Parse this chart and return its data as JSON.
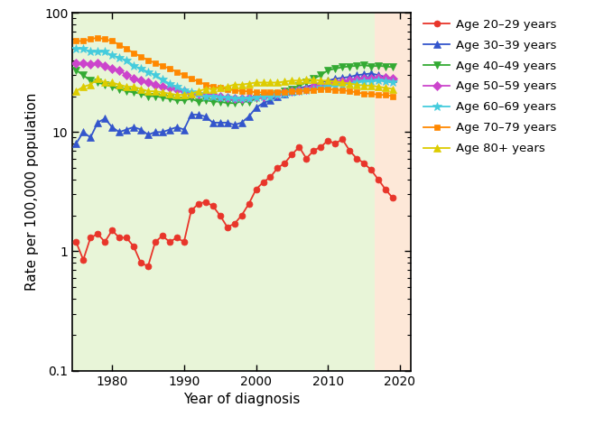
{
  "xlabel": "Year of diagnosis",
  "ylabel": "Rate per 100,000 population",
  "ylim": [
    0.1,
    100
  ],
  "xlim": [
    1974.5,
    2021.5
  ],
  "green_bg_start": 1974.5,
  "green_bg_end": 2016.5,
  "pink_bg_start": 2016.5,
  "pink_bg_end": 2021.5,
  "xticks": [
    1980,
    1990,
    2000,
    2010,
    2020
  ],
  "yticks": [
    0.1,
    1,
    10,
    100
  ],
  "ytick_labels": [
    "0.1",
    "1",
    "10",
    "100"
  ],
  "series": [
    {
      "label": "Age 20–29 years",
      "color": "#e8352a",
      "marker": "o",
      "markersize": 5,
      "linewidth": 1.3,
      "years": [
        1975,
        1976,
        1977,
        1978,
        1979,
        1980,
        1981,
        1982,
        1983,
        1984,
        1985,
        1986,
        1987,
        1988,
        1989,
        1990,
        1991,
        1992,
        1993,
        1994,
        1995,
        1996,
        1997,
        1998,
        1999,
        2000,
        2001,
        2002,
        2003,
        2004,
        2005,
        2006,
        2007,
        2008,
        2009,
        2010,
        2011,
        2012,
        2013,
        2014,
        2015,
        2016,
        2017,
        2018,
        2019
      ],
      "values": [
        1.2,
        0.85,
        1.3,
        1.4,
        1.2,
        1.5,
        1.3,
        1.3,
        1.1,
        0.8,
        0.75,
        1.2,
        1.35,
        1.2,
        1.3,
        1.2,
        2.2,
        2.5,
        2.6,
        2.4,
        2.0,
        1.6,
        1.7,
        2.0,
        2.5,
        3.3,
        3.8,
        4.2,
        5.0,
        5.5,
        6.5,
        7.5,
        6.0,
        7.0,
        7.5,
        8.5,
        8.0,
        8.7,
        7.0,
        6.0,
        5.5,
        4.8,
        4.0,
        3.3,
        2.8
      ]
    },
    {
      "label": "Age 30–39 years",
      "color": "#3355cc",
      "marker": "^",
      "markersize": 6,
      "linewidth": 1.3,
      "years": [
        1975,
        1976,
        1977,
        1978,
        1979,
        1980,
        1981,
        1982,
        1983,
        1984,
        1985,
        1986,
        1987,
        1988,
        1989,
        1990,
        1991,
        1992,
        1993,
        1994,
        1995,
        1996,
        1997,
        1998,
        1999,
        2000,
        2001,
        2002,
        2003,
        2004,
        2005,
        2006,
        2007,
        2008,
        2009,
        2010,
        2011,
        2012,
        2013,
        2014,
        2015,
        2016,
        2017,
        2018,
        2019
      ],
      "values": [
        8.0,
        10.0,
        9.0,
        12.0,
        13.0,
        11.0,
        10.0,
        10.5,
        11.0,
        10.5,
        9.5,
        10.0,
        10.0,
        10.5,
        11.0,
        10.5,
        14.0,
        14.0,
        13.5,
        12.0,
        12.0,
        12.0,
        11.5,
        12.0,
        13.5,
        16.0,
        17.5,
        18.5,
        20.0,
        21.0,
        22.0,
        23.5,
        24.0,
        25.0,
        26.0,
        27.0,
        28.0,
        28.5,
        29.0,
        30.0,
        30.5,
        31.0,
        30.0,
        29.0,
        28.0
      ]
    },
    {
      "label": "Age 40–49 years",
      "color": "#33aa33",
      "marker": "v",
      "markersize": 6,
      "linewidth": 1.3,
      "years": [
        1975,
        1976,
        1977,
        1978,
        1979,
        1980,
        1981,
        1982,
        1983,
        1984,
        1985,
        1986,
        1987,
        1988,
        1989,
        1990,
        1991,
        1992,
        1993,
        1994,
        1995,
        1996,
        1997,
        1998,
        1999,
        2000,
        2001,
        2002,
        2003,
        2004,
        2005,
        2006,
        2007,
        2008,
        2009,
        2010,
        2011,
        2012,
        2013,
        2014,
        2015,
        2016,
        2017,
        2018,
        2019
      ],
      "values": [
        33.0,
        30.0,
        27.0,
        26.0,
        25.0,
        24.0,
        23.0,
        22.0,
        21.5,
        21.0,
        20.0,
        20.0,
        19.5,
        19.0,
        18.5,
        18.5,
        19.0,
        18.0,
        18.5,
        18.0,
        18.0,
        17.5,
        17.5,
        18.0,
        18.0,
        19.0,
        19.5,
        20.0,
        21.0,
        22.0,
        23.0,
        24.5,
        26.0,
        28.0,
        30.0,
        33.0,
        34.0,
        35.0,
        35.5,
        36.0,
        36.5,
        35.5,
        36.0,
        35.5,
        35.0
      ]
    },
    {
      "label": "Age 50–59 years",
      "color": "#cc44cc",
      "marker": "D",
      "markersize": 5,
      "linewidth": 1.3,
      "years": [
        1975,
        1976,
        1977,
        1978,
        1979,
        1980,
        1981,
        1982,
        1983,
        1984,
        1985,
        1986,
        1987,
        1988,
        1989,
        1990,
        1991,
        1992,
        1993,
        1994,
        1995,
        1996,
        1997,
        1998,
        1999,
        2000,
        2001,
        2002,
        2003,
        2004,
        2005,
        2006,
        2007,
        2008,
        2009,
        2010,
        2011,
        2012,
        2013,
        2014,
        2015,
        2016,
        2017,
        2018,
        2019
      ],
      "values": [
        38.0,
        38.0,
        37.0,
        38.0,
        36.0,
        34.0,
        33.0,
        30.0,
        28.0,
        27.0,
        26.0,
        25.0,
        24.0,
        23.5,
        23.0,
        22.0,
        21.0,
        21.0,
        20.5,
        20.5,
        20.0,
        19.5,
        19.0,
        19.0,
        19.5,
        20.0,
        20.0,
        20.5,
        21.0,
        21.5,
        22.0,
        22.5,
        23.0,
        24.0,
        25.0,
        25.5,
        26.0,
        26.5,
        27.0,
        27.5,
        28.0,
        28.0,
        28.5,
        28.5,
        28.0
      ]
    },
    {
      "label": "Age 60–69 years",
      "color": "#44ccdd",
      "marker": "*",
      "markersize": 7,
      "linewidth": 1.3,
      "years": [
        1975,
        1976,
        1977,
        1978,
        1979,
        1980,
        1981,
        1982,
        1983,
        1984,
        1985,
        1986,
        1987,
        1988,
        1989,
        1990,
        1991,
        1992,
        1993,
        1994,
        1995,
        1996,
        1997,
        1998,
        1999,
        2000,
        2001,
        2002,
        2003,
        2004,
        2005,
        2006,
        2007,
        2008,
        2009,
        2010,
        2011,
        2012,
        2013,
        2014,
        2015,
        2016,
        2017,
        2018,
        2019
      ],
      "values": [
        50.0,
        50.0,
        47.0,
        47.0,
        47.0,
        44.0,
        42.0,
        40.0,
        36.0,
        34.0,
        32.0,
        30.0,
        27.5,
        25.5,
        24.0,
        22.5,
        21.5,
        21.0,
        20.0,
        20.0,
        19.5,
        19.5,
        19.0,
        19.0,
        19.0,
        19.5,
        20.0,
        20.0,
        20.5,
        21.0,
        21.5,
        22.0,
        22.5,
        23.0,
        23.5,
        24.0,
        24.5,
        25.0,
        25.5,
        26.0,
        26.5,
        26.5,
        27.0,
        26.5,
        26.0
      ]
    },
    {
      "label": "Age 70–79 years",
      "color": "#ff8800",
      "marker": "s",
      "markersize": 5,
      "linewidth": 1.3,
      "years": [
        1975,
        1976,
        1977,
        1978,
        1979,
        1980,
        1981,
        1982,
        1983,
        1984,
        1985,
        1986,
        1987,
        1988,
        1989,
        1990,
        1991,
        1992,
        1993,
        1994,
        1995,
        1996,
        1997,
        1998,
        1999,
        2000,
        2001,
        2002,
        2003,
        2004,
        2005,
        2006,
        2007,
        2008,
        2009,
        2010,
        2011,
        2012,
        2013,
        2014,
        2015,
        2016,
        2017,
        2018,
        2019
      ],
      "values": [
        58.0,
        58.0,
        60.0,
        62.0,
        60.0,
        58.0,
        54.0,
        50.0,
        46.0,
        43.0,
        40.0,
        38.0,
        36.0,
        34.0,
        32.0,
        30.0,
        28.0,
        26.5,
        25.0,
        24.0,
        23.5,
        23.0,
        22.5,
        22.0,
        22.0,
        21.5,
        21.5,
        21.5,
        21.5,
        21.5,
        22.0,
        22.0,
        22.5,
        22.5,
        23.0,
        23.0,
        22.5,
        22.5,
        22.0,
        21.5,
        21.0,
        21.0,
        20.5,
        20.5,
        20.0
      ]
    },
    {
      "label": "Age 80+ years",
      "color": "#ddcc00",
      "marker": "^",
      "markersize": 6,
      "linewidth": 1.3,
      "years": [
        1975,
        1976,
        1977,
        1978,
        1979,
        1980,
        1981,
        1982,
        1983,
        1984,
        1985,
        1986,
        1987,
        1988,
        1989,
        1990,
        1991,
        1992,
        1993,
        1994,
        1995,
        1996,
        1997,
        1998,
        1999,
        2000,
        2001,
        2002,
        2003,
        2004,
        2005,
        2006,
        2007,
        2008,
        2009,
        2010,
        2011,
        2012,
        2013,
        2014,
        2015,
        2016,
        2017,
        2018,
        2019
      ],
      "values": [
        22.0,
        24.0,
        25.0,
        28.0,
        26.0,
        26.0,
        25.0,
        24.0,
        24.0,
        23.0,
        22.0,
        22.0,
        21.5,
        21.0,
        20.5,
        20.5,
        21.0,
        22.0,
        23.0,
        23.0,
        23.5,
        24.0,
        25.0,
        25.0,
        25.5,
        26.0,
        26.0,
        26.0,
        26.0,
        26.5,
        27.0,
        27.0,
        27.5,
        27.5,
        27.0,
        27.0,
        26.5,
        26.0,
        25.5,
        25.0,
        24.5,
        24.5,
        24.0,
        23.5,
        23.0
      ]
    }
  ]
}
